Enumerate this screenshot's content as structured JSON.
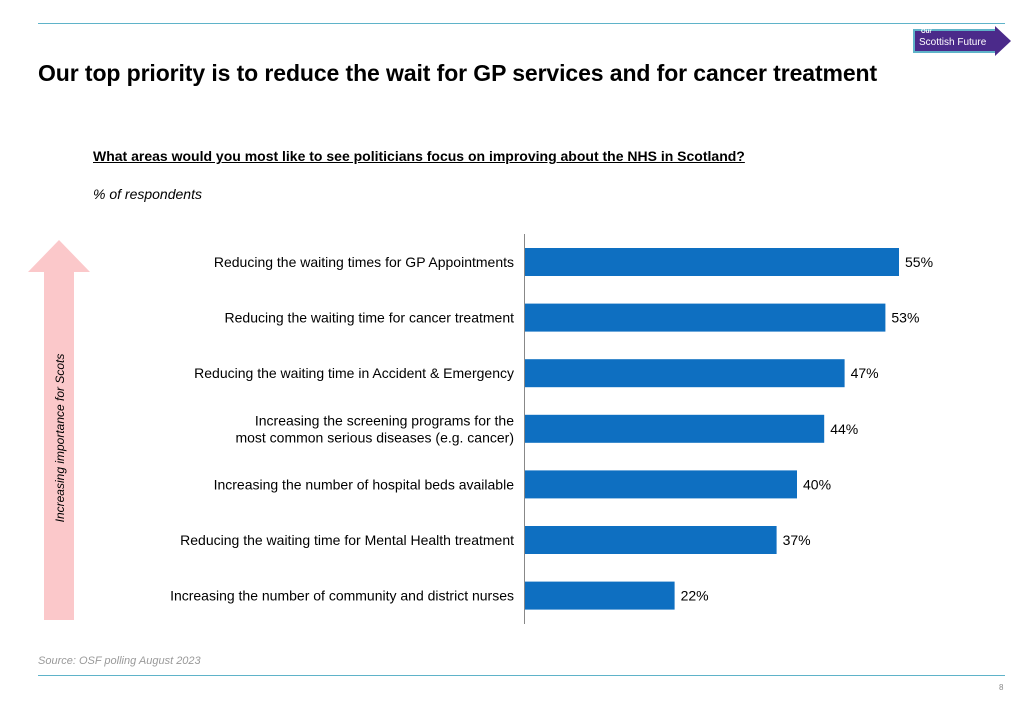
{
  "logo": {
    "line1": "Our",
    "line2": "Scottish Future"
  },
  "title": "Our top priority is to reduce the wait for GP services and for cancer treatment",
  "question": "What areas would you most like to see politicians focus on improving about the NHS in Scotland?",
  "unit": "% of respondents",
  "importance_label": "Increasing importance for Scots",
  "source": "Source: OSF polling August 2023",
  "page_number": "8",
  "colors": {
    "bar": "#0e6fc1",
    "arrow": "#fbc8ca",
    "rule": "#5fb3c9",
    "logo": "#4b2a8a"
  },
  "chart_data": {
    "type": "bar",
    "orientation": "horizontal",
    "categories": [
      [
        "Reducing the waiting times for GP Appointments"
      ],
      [
        "Reducing the waiting time for cancer treatment"
      ],
      [
        "Reducing the waiting time in Accident & Emergency"
      ],
      [
        "Increasing the screening programs for the",
        "most common serious diseases (e.g. cancer)"
      ],
      [
        "Increasing the number of hospital beds available"
      ],
      [
        "Reducing the waiting time for Mental Health treatment"
      ],
      [
        "Increasing the number of community and district nurses"
      ]
    ],
    "values": [
      55,
      53,
      47,
      44,
      40,
      37,
      22
    ],
    "value_labels": [
      "55%",
      "53%",
      "47%",
      "44%",
      "40%",
      "37%",
      "22%"
    ],
    "grid": false
  }
}
